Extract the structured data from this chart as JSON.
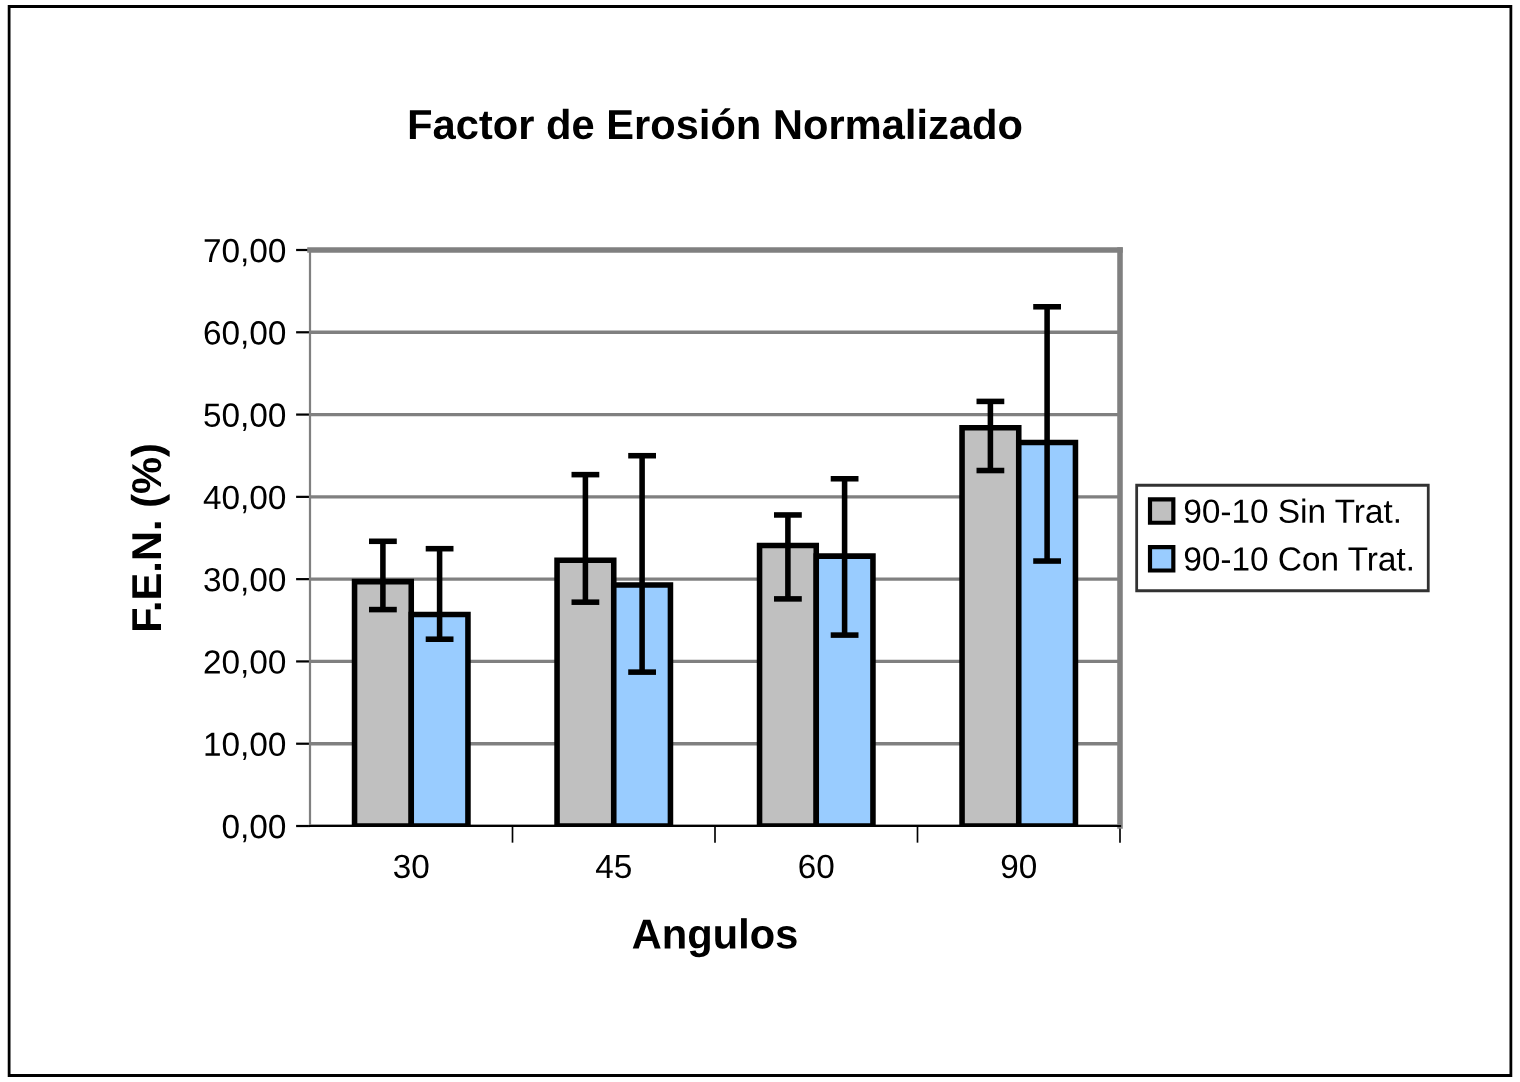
{
  "chart_data": {
    "type": "bar",
    "title": "Factor de Erosión Normalizado",
    "xlabel": "Angulos",
    "ylabel": "F.E.N. (%)",
    "categories": [
      "30",
      "45",
      "60",
      "90"
    ],
    "series": [
      {
        "name": "90-10 Sin Trat.",
        "color": "#c0c0c0",
        "values": [
          29.7,
          32.3,
          34.1,
          48.4
        ],
        "errors": [
          [
            26.3,
            34.6
          ],
          [
            27.2,
            42.7
          ],
          [
            27.6,
            37.8
          ],
          [
            43.2,
            51.6
          ]
        ]
      },
      {
        "name": "90-10 Con Trat.",
        "color": "#99ccff",
        "values": [
          25.7,
          29.3,
          32.8,
          46.6
        ],
        "errors": [
          [
            22.7,
            33.7
          ],
          [
            18.7,
            45.0
          ],
          [
            23.2,
            42.2
          ],
          [
            32.2,
            63.1
          ]
        ]
      }
    ],
    "ylim": [
      0,
      70
    ],
    "yticks": [
      {
        "value": 0,
        "label": "0,00"
      },
      {
        "value": 10,
        "label": "10,00"
      },
      {
        "value": 20,
        "label": "20,00"
      },
      {
        "value": 30,
        "label": "30,00"
      },
      {
        "value": 40,
        "label": "40,00"
      },
      {
        "value": 50,
        "label": "50,00"
      },
      {
        "value": 60,
        "label": "60,00"
      },
      {
        "value": 70,
        "label": "70,00"
      }
    ],
    "grid": "y",
    "legend": "right"
  }
}
